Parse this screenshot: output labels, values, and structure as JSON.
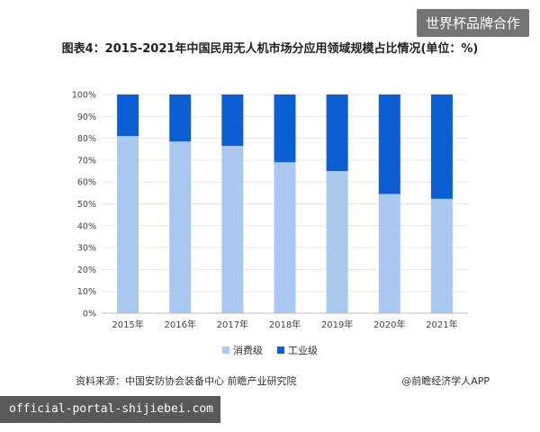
{
  "watermark_tag": "世界杯品牌合作",
  "chart_title": "图表4：2015-2021年中国民用无人机市场分应用领域规模占比情况(单位：%)",
  "source": "资料来源：中国安防协会装备中心 前瞻产业研究院",
  "brand": "@前瞻经济学人APP",
  "url_overlay": "official-portal-shijiebei.com",
  "colors": {
    "consumer": "#a9c8f0",
    "industrial": "#0b5fd3",
    "grid": "#e6e6e6",
    "axis": "#666666"
  },
  "chart_data": {
    "type": "bar",
    "stacked": true,
    "categories": [
      "2015年",
      "2016年",
      "2017年",
      "2018年",
      "2019年",
      "2020年",
      "2021年"
    ],
    "series": [
      {
        "name": "消费级",
        "values": [
          81,
          78.5,
          76.5,
          69,
          65,
          54.5,
          52.3
        ]
      },
      {
        "name": "工业级",
        "values": [
          19,
          21.5,
          23.5,
          31,
          35,
          45.5,
          47.7
        ]
      }
    ],
    "yticks": [
      "0%",
      "10%",
      "20%",
      "30%",
      "40%",
      "50%",
      "60%",
      "70%",
      "80%",
      "90%",
      "100%"
    ],
    "ylim": [
      0,
      100
    ],
    "legend_position": "bottom",
    "grid": true
  }
}
